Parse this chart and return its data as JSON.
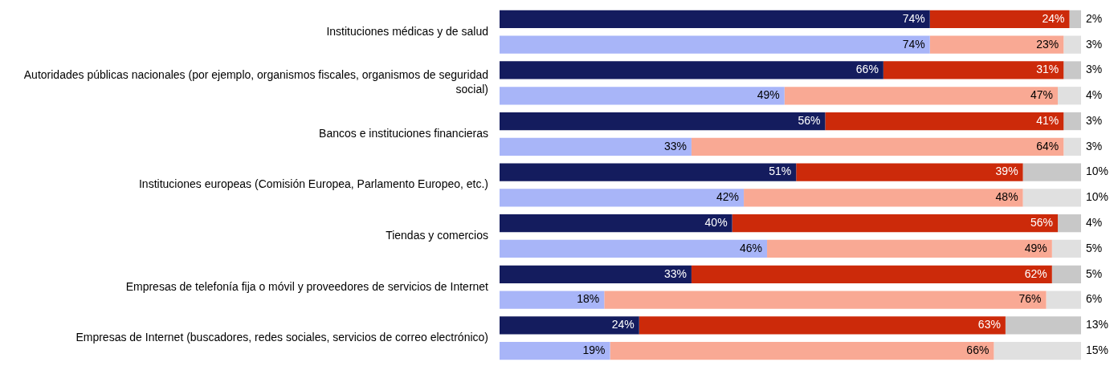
{
  "chart_data": {
    "type": "bar",
    "orientation": "horizontal",
    "stacked": true,
    "legend": false,
    "categories": [
      "Instituciones médicas y de salud",
      null,
      "Autoridades públicas nacionales (por ejemplo, organismos fiscales, organismos de seguridad social)",
      null,
      "Bancos e instituciones financieras",
      null,
      "Instituciones europeas (Comisión Europea, Parlamento Europeo, etc.)",
      null,
      "Tiendas y comercios",
      null,
      "Empresas de telefonía fija o móvil y proveedores de servicios de Internet",
      null,
      "Empresas de Internet (buscadores, redes sociales, servicios de correo electrónico)",
      null
    ],
    "series": [
      {
        "colors": [
          "#141c5e",
          "#a8b5f8",
          "#141c5e",
          "#a8b5f8",
          "#141c5e",
          "#a8b5f8",
          "#141c5e",
          "#a8b5f8",
          "#141c5e",
          "#a8b5f8",
          "#141c5e",
          "#a8b5f8",
          "#141c5e",
          "#a8b5f8"
        ],
        "values": [
          74,
          74,
          66,
          49,
          56,
          33,
          51,
          42,
          40,
          46,
          33,
          18,
          24,
          19
        ],
        "value_labels": [
          "74%",
          "74%",
          "66%",
          "49%",
          "56%",
          "33%",
          "51%",
          "42%",
          "40%",
          "46%",
          "33%",
          "18%",
          "24%",
          "19%"
        ]
      },
      {
        "colors": [
          "#cc2a0a",
          "#f9a994",
          "#cc2a0a",
          "#f9a994",
          "#cc2a0a",
          "#f9a994",
          "#cc2a0a",
          "#f9a994",
          "#cc2a0a",
          "#f9a994",
          "#cc2a0a",
          "#f9a994",
          "#cc2a0a",
          "#f9a994"
        ],
        "values": [
          24,
          23,
          31,
          47,
          41,
          64,
          39,
          48,
          56,
          49,
          62,
          76,
          63,
          66
        ],
        "value_labels": [
          "24%",
          "23%",
          "31%",
          "47%",
          "41%",
          "64%",
          "39%",
          "48%",
          "56%",
          "49%",
          "62%",
          "76%",
          "63%",
          "66%"
        ]
      },
      {
        "colors": [
          "#c8c8c8",
          "#e0e0e0",
          "#c8c8c8",
          "#e0e0e0",
          "#c8c8c8",
          "#e0e0e0",
          "#c8c8c8",
          "#e0e0e0",
          "#c8c8c8",
          "#e0e0e0",
          "#c8c8c8",
          "#e0e0e0",
          "#c8c8c8",
          "#e0e0e0"
        ],
        "values": [
          2,
          3,
          3,
          4,
          3,
          3,
          10,
          10,
          4,
          5,
          5,
          6,
          13,
          15
        ],
        "value_labels": [
          "2%",
          "3%",
          "3%",
          "4%",
          "3%",
          "3%",
          "10%",
          "10%",
          "4%",
          "5%",
          "5%",
          "6%",
          "13%",
          "15%"
        ]
      }
    ]
  }
}
